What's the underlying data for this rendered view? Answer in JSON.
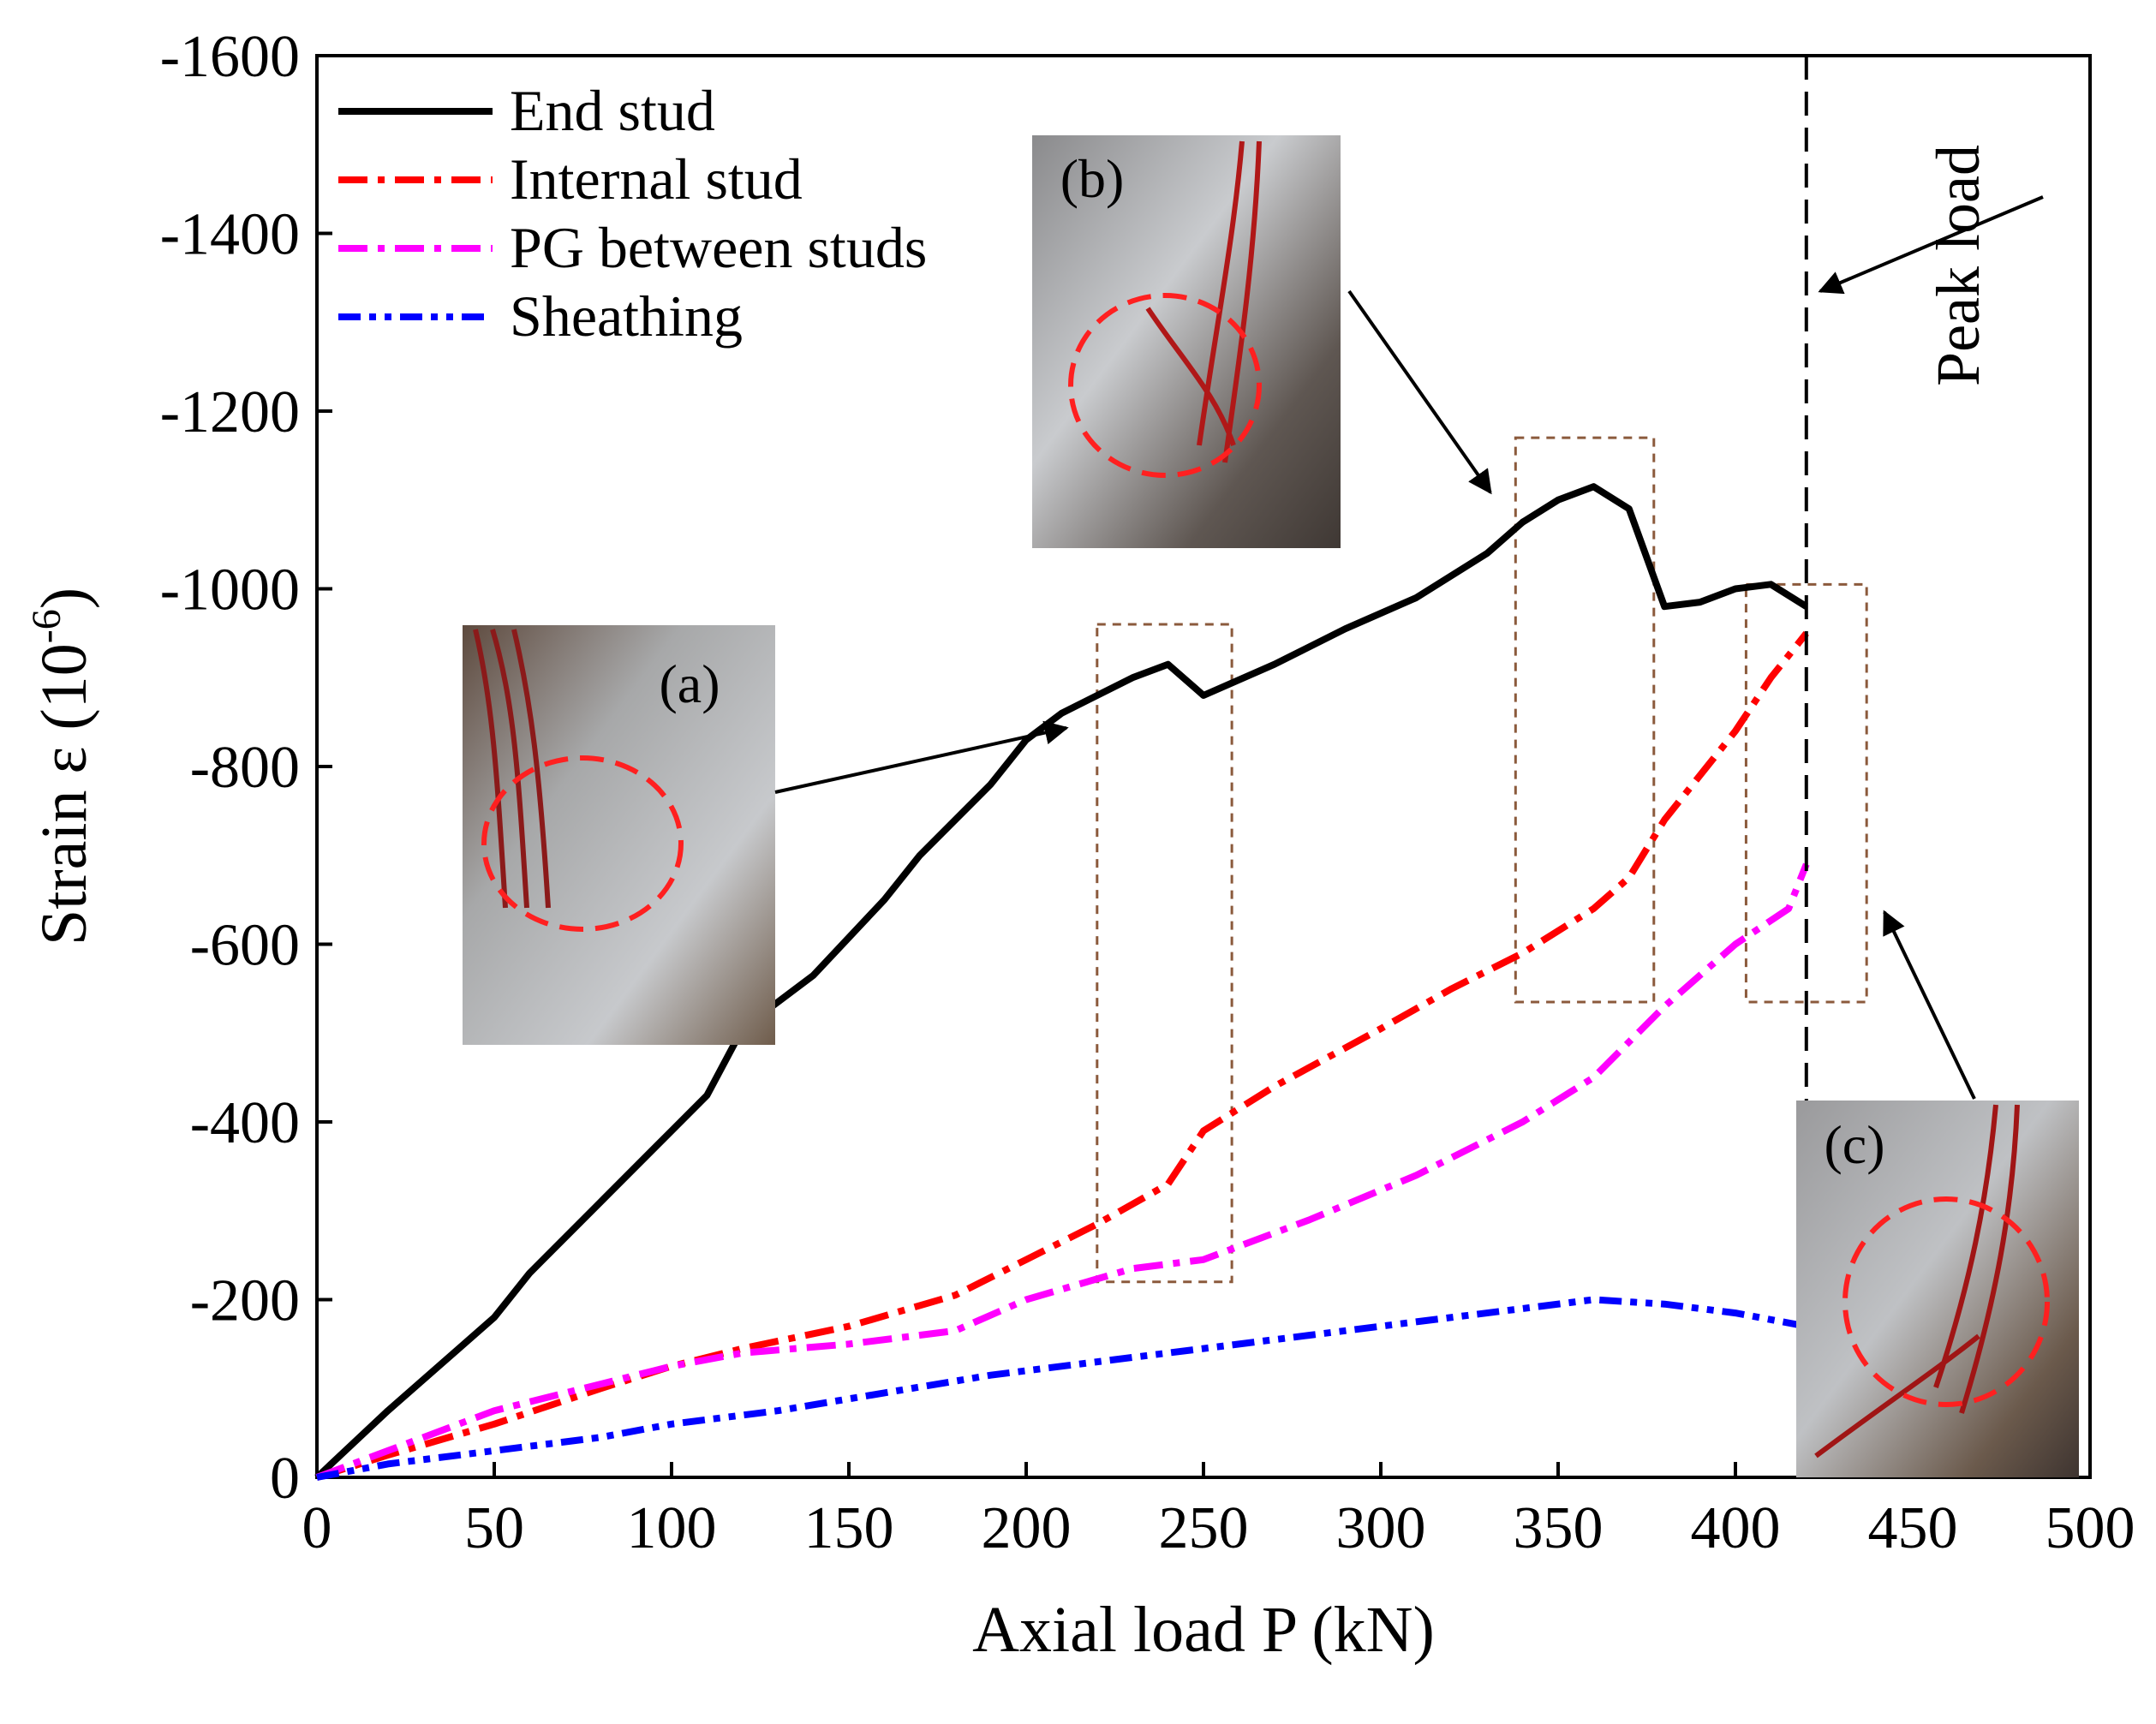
{
  "chart_data": {
    "type": "line",
    "xlabel": "Axial load P (kN)",
    "ylabel_main": "Strain ε (10",
    "ylabel_sup": "-6",
    "ylabel_close": ")",
    "xlim": [
      0,
      500
    ],
    "ylim": [
      0,
      -1600
    ],
    "x_ticks": [
      0,
      50,
      100,
      150,
      200,
      250,
      300,
      350,
      400,
      450,
      500
    ],
    "y_ticks": [
      0,
      -200,
      -400,
      -600,
      -800,
      -1000,
      -1200,
      -1400,
      -1600
    ],
    "grid": false,
    "legend_position": "top-left",
    "series": [
      {
        "name": "End stud",
        "color": "#000000",
        "style": "solid",
        "x": [
          0,
          20,
          40,
          50,
          60,
          80,
          100,
          110,
          120,
          140,
          160,
          170,
          190,
          200,
          210,
          230,
          240,
          250,
          270,
          290,
          310,
          330,
          340,
          350,
          360,
          370,
          380,
          390,
          400,
          410,
          420
        ],
        "y": [
          0,
          -75,
          -145,
          -180,
          -230,
          -310,
          -390,
          -430,
          -505,
          -565,
          -650,
          -700,
          -780,
          -830,
          -860,
          -900,
          -915,
          -880,
          -915,
          -955,
          -990,
          -1040,
          -1075,
          -1100,
          -1115,
          -1090,
          -980,
          -985,
          -1000,
          -1005,
          -980
        ]
      },
      {
        "name": "Internal stud",
        "color": "#ff0000",
        "style": "dash-dot",
        "x": [
          0,
          20,
          50,
          80,
          100,
          120,
          150,
          180,
          200,
          220,
          240,
          250,
          270,
          300,
          320,
          340,
          360,
          370,
          380,
          400,
          410,
          420
        ],
        "y": [
          0,
          -25,
          -60,
          -100,
          -125,
          -145,
          -170,
          -205,
          -245,
          -285,
          -330,
          -390,
          -440,
          -505,
          -550,
          -590,
          -640,
          -675,
          -740,
          -840,
          -900,
          -950
        ]
      },
      {
        "name": "PG between studs",
        "color": "#ff00ff",
        "style": "dash-dot",
        "x": [
          0,
          20,
          50,
          80,
          100,
          120,
          150,
          180,
          200,
          230,
          250,
          280,
          310,
          340,
          360,
          380,
          400,
          415,
          420
        ],
        "y": [
          0,
          -30,
          -75,
          -105,
          -125,
          -140,
          -150,
          -165,
          -200,
          -235,
          -245,
          -290,
          -340,
          -400,
          -450,
          -530,
          -600,
          -640,
          -690
        ]
      },
      {
        "name": "Sheathing",
        "color": "#0000ff",
        "style": "dash-dot-dot",
        "x": [
          0,
          20,
          50,
          80,
          100,
          130,
          160,
          190,
          220,
          250,
          280,
          310,
          340,
          360,
          380,
          400,
          420
        ],
        "y": [
          0,
          -15,
          -30,
          -45,
          -60,
          -75,
          -95,
          -115,
          -130,
          -145,
          -160,
          -175,
          -190,
          -200,
          -195,
          -185,
          -170
        ]
      }
    ],
    "peak_load": {
      "x": 420,
      "label": "Peak load"
    },
    "photos": [
      {
        "label": "(a)",
        "color": "#8f8a84"
      },
      {
        "label": "(b)",
        "color": "#7a746e"
      },
      {
        "label": "(c)",
        "color": "#7d7872"
      }
    ],
    "highlight_boxes": [
      {
        "x_range": [
          220,
          258
        ],
        "y_range": [
          -220,
          -960
        ]
      },
      {
        "x_range": [
          338,
          377
        ],
        "y_range": [
          -535,
          -1170
        ]
      },
      {
        "x_range": [
          403,
          437
        ],
        "y_range": [
          -535,
          -1005
        ]
      }
    ]
  }
}
